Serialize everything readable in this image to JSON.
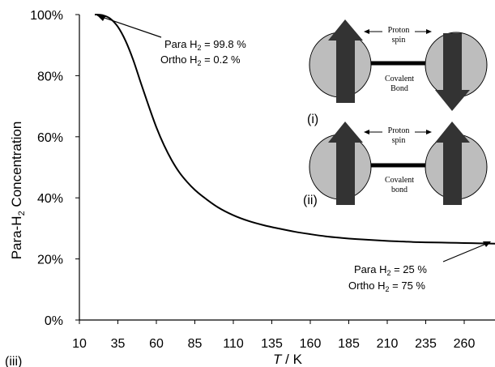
{
  "chart_data": {
    "type": "line",
    "xlabel_var": "T",
    "xlabel_unit": " / K",
    "ylabel_prefix": "Para-H",
    "ylabel_sub": "2",
    "ylabel_suffix": " Concentration",
    "xlim": [
      10,
      280
    ],
    "ylim": [
      0,
      100
    ],
    "x_ticks": [
      10,
      35,
      60,
      85,
      110,
      135,
      160,
      185,
      210,
      235,
      260
    ],
    "y_ticks": [
      {
        "value": 0,
        "label": "0%"
      },
      {
        "value": 20,
        "label": "20%"
      },
      {
        "value": 40,
        "label": "40%"
      },
      {
        "value": 60,
        "label": "60%"
      },
      {
        "value": 80,
        "label": "80%"
      },
      {
        "value": 100,
        "label": "100%"
      }
    ],
    "grid": false,
    "series": [
      {
        "x": [
          20,
          25,
          30,
          35,
          40,
          45,
          50,
          55,
          60,
          65,
          70,
          75,
          80,
          85,
          90,
          100,
          110,
          120,
          130,
          140,
          150,
          160,
          170,
          180,
          190,
          200,
          210,
          220,
          230,
          240,
          250,
          260,
          270,
          280
        ],
        "y": [
          100,
          99.8,
          98.7,
          96.0,
          91.4,
          85.1,
          77.5,
          70.1,
          63.1,
          57.2,
          52.3,
          48.3,
          45.2,
          42.6,
          40.5,
          36.9,
          34.3,
          32.4,
          31.0,
          29.9,
          28.9,
          28.1,
          27.4,
          26.9,
          26.5,
          26.2,
          25.9,
          25.7,
          25.5,
          25.4,
          25.3,
          25.2,
          25.1,
          25.0
        ]
      }
    ],
    "annotations": {
      "top_line1_prefix": "Para H",
      "top_line1_sub": "2",
      "top_line1_suffix": " = 99.8 %",
      "top_line2_prefix": "Ortho H",
      "top_line2_sub": "2",
      "top_line2_suffix": " = 0.2 %",
      "bottom_line1_prefix": "Para H",
      "bottom_line1_sub": "2",
      "bottom_line1_suffix": " = 25 %",
      "bottom_line2_prefix": "Ortho H",
      "bottom_line2_sub": "2",
      "bottom_line2_suffix": " = 75 %"
    },
    "inset": {
      "panel_i": "(i)",
      "panel_ii": "(ii)",
      "panel_iii": "(iii)",
      "i_spin_l1": "Proton",
      "i_spin_l2": "spin",
      "i_bond_l1": "Covalent",
      "i_bond_l2": "Bond",
      "ii_spin_l1": "Proton",
      "ii_spin_l2": "spin",
      "ii_bond_l1": "Covalent",
      "ii_bond_l2": "bond"
    }
  }
}
